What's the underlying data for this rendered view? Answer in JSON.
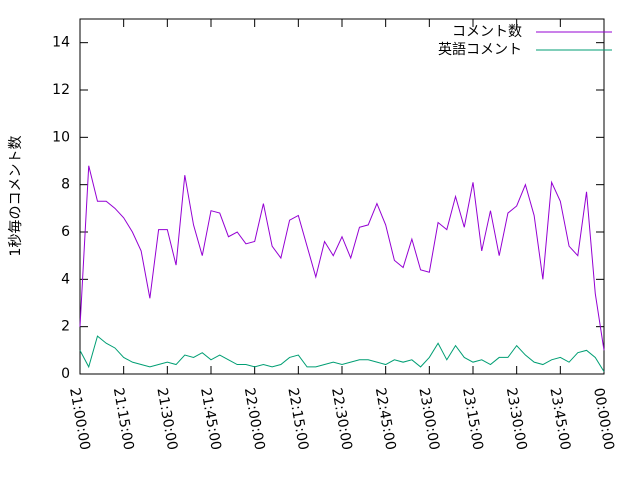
{
  "chart_data": {
    "type": "line",
    "ylabel": "1秒毎のコメント数",
    "ylim": [
      0,
      15
    ],
    "yticks": [
      0,
      2,
      4,
      6,
      8,
      10,
      12,
      14
    ],
    "xlim": [
      "21:00:00",
      "00:00:00"
    ],
    "xticks": [
      "21:00:00",
      "21:15:00",
      "21:30:00",
      "21:45:00",
      "22:00:00",
      "22:15:00",
      "22:30:00",
      "22:45:00",
      "23:00:00",
      "23:15:00",
      "23:30:00",
      "23:45:00",
      "00:00:00"
    ],
    "legend": "top-right",
    "x": [
      "21:00:00",
      "21:03:00",
      "21:06:00",
      "21:09:00",
      "21:12:00",
      "21:15:00",
      "21:18:00",
      "21:21:00",
      "21:24:00",
      "21:27:00",
      "21:30:00",
      "21:33:00",
      "21:36:00",
      "21:39:00",
      "21:42:00",
      "21:45:00",
      "21:48:00",
      "21:51:00",
      "21:54:00",
      "21:57:00",
      "22:00:00",
      "22:03:00",
      "22:06:00",
      "22:09:00",
      "22:12:00",
      "22:15:00",
      "22:18:00",
      "22:21:00",
      "22:24:00",
      "22:27:00",
      "22:30:00",
      "22:33:00",
      "22:36:00",
      "22:39:00",
      "22:42:00",
      "22:45:00",
      "22:48:00",
      "22:51:00",
      "22:54:00",
      "22:57:00",
      "23:00:00",
      "23:03:00",
      "23:06:00",
      "23:09:00",
      "23:12:00",
      "23:15:00",
      "23:18:00",
      "23:21:00",
      "23:24:00",
      "23:27:00",
      "23:30:00",
      "23:33:00",
      "23:36:00",
      "23:39:00",
      "23:42:00",
      "23:45:00",
      "23:48:00",
      "23:51:00",
      "23:54:00",
      "23:57:00",
      "00:00:00"
    ],
    "series": [
      {
        "name": "コメント数",
        "color": "#9400d3",
        "values": [
          2.0,
          8.8,
          7.3,
          7.3,
          7.0,
          6.6,
          6.0,
          5.2,
          3.2,
          6.1,
          6.1,
          4.6,
          8.4,
          6.3,
          5.0,
          6.9,
          6.8,
          5.8,
          6.0,
          5.5,
          5.6,
          7.2,
          5.4,
          4.9,
          6.5,
          6.7,
          5.4,
          4.1,
          5.6,
          5.0,
          5.8,
          4.9,
          6.2,
          6.3,
          7.2,
          6.3,
          4.8,
          4.5,
          5.7,
          4.4,
          4.3,
          6.4,
          6.1,
          7.5,
          6.2,
          8.1,
          5.2,
          6.9,
          5.0,
          6.8,
          7.1,
          8.0,
          6.7,
          4.0,
          8.1,
          7.3,
          5.4,
          5.0,
          7.7,
          3.4,
          1.0
        ]
      },
      {
        "name": "英語コメント",
        "color": "#009e73",
        "values": [
          1.0,
          0.3,
          1.6,
          1.3,
          1.1,
          0.7,
          0.5,
          0.4,
          0.3,
          0.4,
          0.5,
          0.4,
          0.8,
          0.7,
          0.9,
          0.6,
          0.8,
          0.6,
          0.4,
          0.4,
          0.3,
          0.4,
          0.3,
          0.4,
          0.7,
          0.8,
          0.3,
          0.3,
          0.4,
          0.5,
          0.4,
          0.5,
          0.6,
          0.6,
          0.5,
          0.4,
          0.6,
          0.5,
          0.6,
          0.3,
          0.7,
          1.3,
          0.6,
          1.2,
          0.7,
          0.5,
          0.6,
          0.4,
          0.7,
          0.7,
          1.2,
          0.8,
          0.5,
          0.4,
          0.6,
          0.7,
          0.5,
          0.9,
          1.0,
          0.7,
          0.1
        ]
      }
    ]
  }
}
